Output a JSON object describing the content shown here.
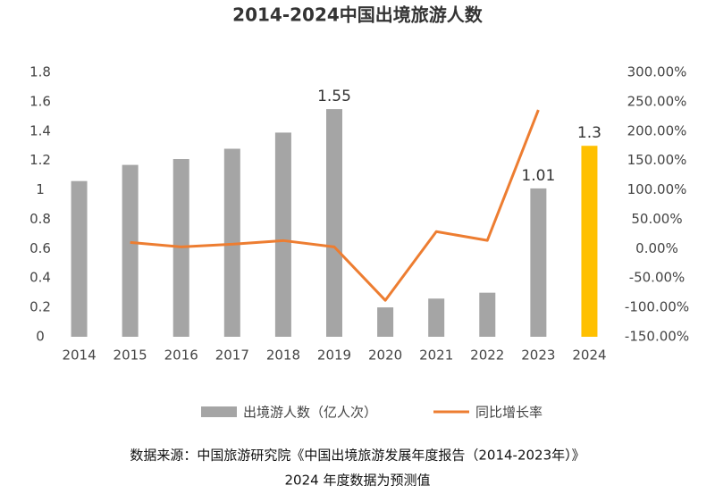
{
  "chart_data": {
    "type": "bar-line",
    "title": "2014-2024中国出境旅游人数",
    "categories": [
      "2014",
      "2015",
      "2016",
      "2017",
      "2018",
      "2019",
      "2020",
      "2021",
      "2022",
      "2023",
      "2024"
    ],
    "series": [
      {
        "name": "出境游人数（亿人次）",
        "type": "bar",
        "color": "#a5a5a5",
        "colors": [
          "#a5a5a5",
          "#a5a5a5",
          "#a5a5a5",
          "#a5a5a5",
          "#a5a5a5",
          "#a5a5a5",
          "#a5a5a5",
          "#a5a5a5",
          "#a5a5a5",
          "#a5a5a5",
          "#ffc000"
        ],
        "values": [
          1.06,
          1.17,
          1.21,
          1.28,
          1.39,
          1.55,
          0.2,
          0.26,
          0.3,
          1.01,
          1.3
        ],
        "value_labels": [
          null,
          null,
          null,
          null,
          null,
          "1.55",
          null,
          null,
          null,
          "1.01",
          "1.3"
        ]
      },
      {
        "name": "同比增长率",
        "type": "line",
        "axis": "y2",
        "color": "#ed7d31",
        "values": [
          null,
          10.6,
          3,
          7.6,
          13.7,
          3,
          -88,
          29,
          14,
          236,
          null
        ]
      }
    ],
    "ylim": [
      0,
      1.8
    ],
    "yticks": [
      0,
      0.2,
      0.4,
      0.6,
      0.8,
      1,
      1.2,
      1.4,
      1.6,
      1.8
    ],
    "y2lim": [
      -150,
      300
    ],
    "y2ticks": [
      {
        "value": -150,
        "label": "-150.00%"
      },
      {
        "value": -100,
        "label": "-100.00%"
      },
      {
        "value": -50,
        "label": "-50.00%"
      },
      {
        "value": 0,
        "label": "0.00%"
      },
      {
        "value": 50,
        "label": "50.00%"
      },
      {
        "value": 100,
        "label": "100.00%"
      },
      {
        "value": 150,
        "label": "150.00%"
      },
      {
        "value": 200,
        "label": "200.00%"
      },
      {
        "value": 250,
        "label": "250.00%"
      },
      {
        "value": 300,
        "label": "300.00%"
      }
    ],
    "notes": [
      "数据来源：中国旅游研究院《中国出境旅游发展年度报告（2014-2023年）》",
      "2024 年度数据为预测值"
    ]
  }
}
